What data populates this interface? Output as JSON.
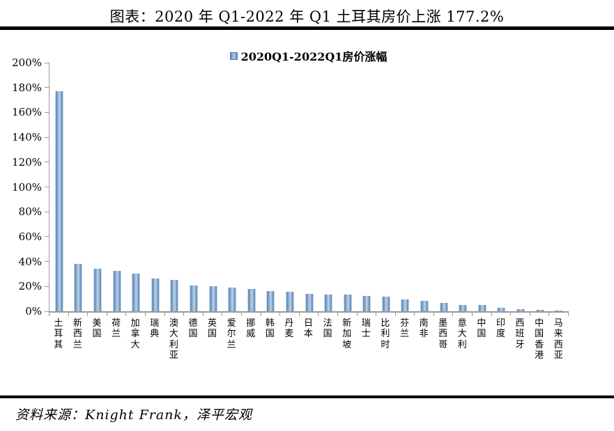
{
  "title": "图表：2020 年 Q1-2022 年 Q1 土耳其房价上涨 177.2%",
  "source": {
    "text": "资料来源：Knight Frank，泽平宏观"
  },
  "colors": {
    "bar_edge": "#5e89bb",
    "bar_mid": "#9fbbda",
    "bar_center": "#c2d4e8",
    "axis": "#9a9a9a",
    "rule": "#000000"
  },
  "chart_data": {
    "type": "bar",
    "title": "图表：2020 年 Q1-2022 年 Q1 土耳其房价上涨 177.2%",
    "legend_position": "top-center",
    "grid": false,
    "xlabel": "",
    "ylabel": "",
    "ylim": [
      0,
      200
    ],
    "ytick_step": 20,
    "ytick_suffix": "%",
    "categories": [
      "土耳其",
      "新西兰",
      "美国",
      "荷兰",
      "加拿大",
      "瑞典",
      "澳大利亚",
      "德国",
      "英国",
      "爱尔兰",
      "挪威",
      "韩国",
      "丹麦",
      "日本",
      "法国",
      "新加坡",
      "瑞士",
      "比利时",
      "芬兰",
      "南非",
      "墨西哥",
      "意大利",
      "中国",
      "印度",
      "西班牙",
      "中国香港",
      "马来西亚"
    ],
    "series": [
      {
        "name": "2020Q1-2022Q1房价涨幅",
        "values": [
          177.2,
          38.0,
          34.0,
          32.5,
          30.5,
          26.5,
          25.0,
          21.0,
          20.0,
          18.8,
          18.0,
          16.3,
          15.7,
          14.2,
          13.6,
          13.3,
          12.1,
          11.8,
          9.4,
          8.5,
          6.8,
          5.3,
          4.8,
          3.0,
          1.9,
          1.3,
          0.3
        ]
      }
    ]
  }
}
